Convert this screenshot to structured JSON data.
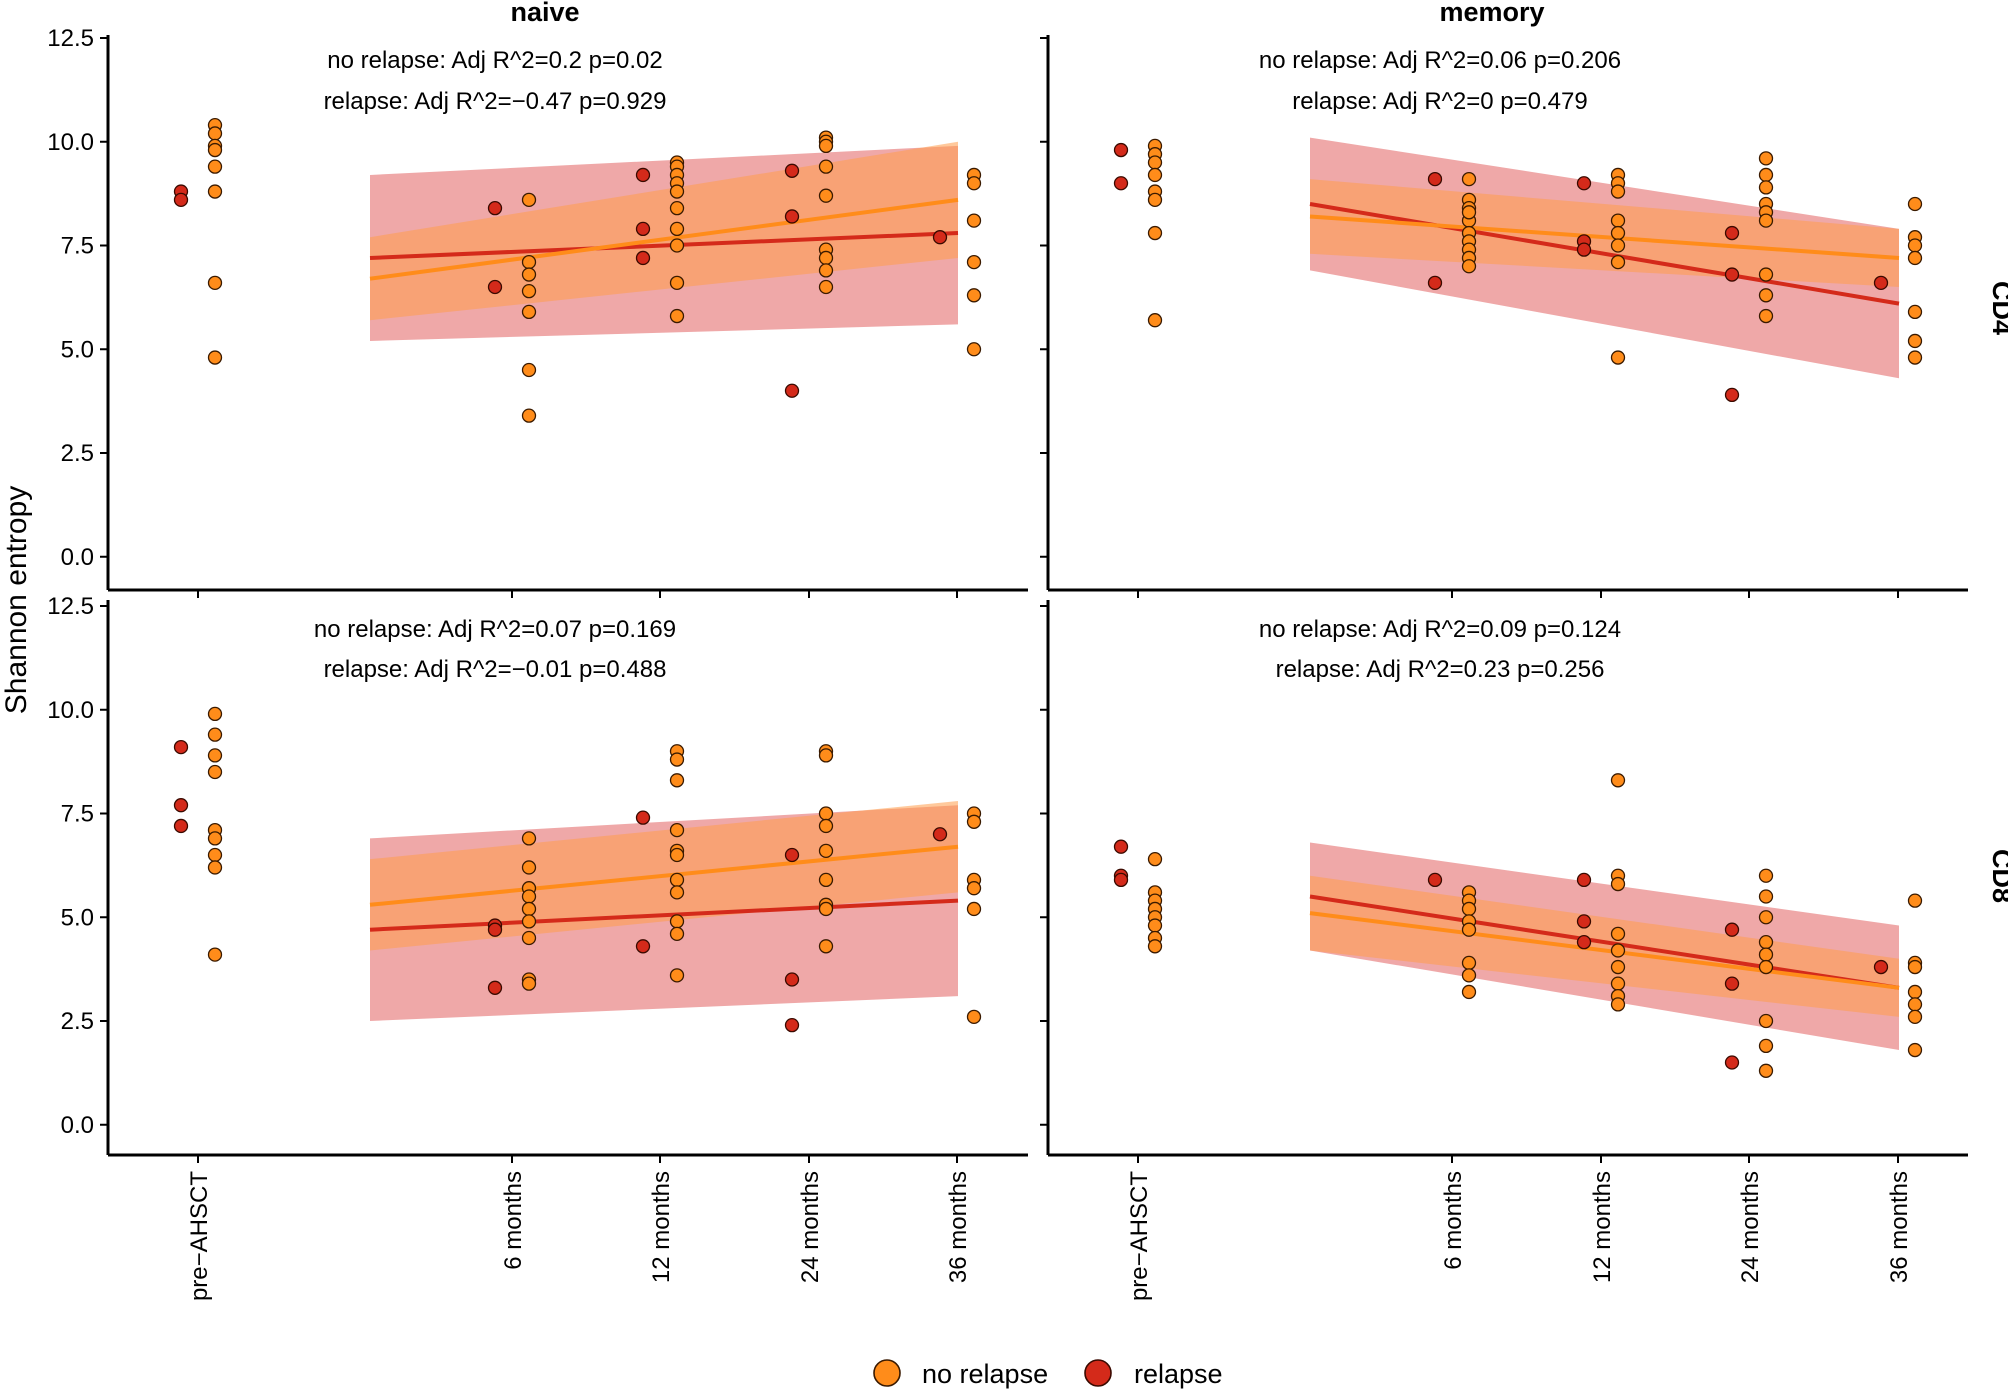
{
  "chart_data": {
    "type": "scatter",
    "ylabel": "Shannon entropy",
    "ylim": [
      0,
      12.5
    ],
    "yticks": [
      "0.0",
      "2.5",
      "5.0",
      "7.5",
      "10.0",
      "12.5"
    ],
    "xticks": [
      "pre−AHSCT",
      "6 months",
      "12 months",
      "24 months",
      "36 months"
    ],
    "x_positions": [
      -6,
      6,
      12,
      24,
      36
    ],
    "columns": [
      "naive",
      "memory"
    ],
    "rows": [
      "CD4",
      "CD8"
    ],
    "legend": {
      "items": [
        {
          "label": "no relapse",
          "color": "#FF8C1A"
        },
        {
          "label": "relapse",
          "color": "#D42A1A"
        }
      ]
    },
    "colors": {
      "no_relapse": "#FF8C1A",
      "relapse": "#D42A1A",
      "ribbon_no_relapse": "#FF9D4A",
      "ribbon_relapse": "#E26060"
    },
    "panels": [
      {
        "column": "naive",
        "row": "CD4",
        "annotations": [
          "no relapse: Adj R^2=0.2 p=0.02",
          "relapse: Adj R^2=−0.47 p=0.929"
        ],
        "no_relapse": [
          [
            -6,
            10.4
          ],
          [
            -6,
            10.2
          ],
          [
            -6,
            9.9
          ],
          [
            -6,
            9.8
          ],
          [
            -6,
            9.4
          ],
          [
            -6,
            8.8
          ],
          [
            -6,
            6.6
          ],
          [
            -6,
            4.8
          ],
          [
            6,
            8.6
          ],
          [
            6,
            7.1
          ],
          [
            6,
            6.8
          ],
          [
            6,
            6.4
          ],
          [
            6,
            5.9
          ],
          [
            6,
            4.5
          ],
          [
            6,
            3.4
          ],
          [
            12,
            9.5
          ],
          [
            12,
            9.4
          ],
          [
            12,
            9.2
          ],
          [
            12,
            9.0
          ],
          [
            12,
            8.8
          ],
          [
            12,
            8.4
          ],
          [
            12,
            7.9
          ],
          [
            12,
            7.5
          ],
          [
            12,
            6.6
          ],
          [
            12,
            5.8
          ],
          [
            24,
            10.1
          ],
          [
            24,
            10.0
          ],
          [
            24,
            9.9
          ],
          [
            24,
            9.4
          ],
          [
            24,
            8.7
          ],
          [
            24,
            7.4
          ],
          [
            24,
            7.2
          ],
          [
            24,
            6.9
          ],
          [
            24,
            6.5
          ],
          [
            36,
            9.2
          ],
          [
            36,
            9.0
          ],
          [
            36,
            8.1
          ],
          [
            36,
            7.1
          ],
          [
            36,
            6.3
          ],
          [
            36,
            5.0
          ]
        ],
        "relapse": [
          [
            -6,
            8.8
          ],
          [
            -6,
            8.6
          ],
          [
            6,
            8.4
          ],
          [
            6,
            6.5
          ],
          [
            12,
            9.2
          ],
          [
            12,
            7.9
          ],
          [
            12,
            7.2
          ],
          [
            24,
            9.3
          ],
          [
            24,
            8.2
          ],
          [
            24,
            4.0
          ],
          [
            36,
            7.7
          ]
        ],
        "fit_no_relapse": {
          "y0": 6.7,
          "y1": 8.6,
          "lo0": 5.7,
          "hi0": 7.7,
          "lo1": 7.2,
          "hi1": 10.0
        },
        "fit_relapse": {
          "y0": 7.2,
          "y1": 7.8,
          "lo0": 5.2,
          "hi0": 9.2,
          "lo1": 5.6,
          "hi1": 9.9
        }
      },
      {
        "column": "memory",
        "row": "CD4",
        "annotations": [
          "no relapse: Adj R^2=0.06 p=0.206",
          "relapse: Adj R^2=0 p=0.479"
        ],
        "no_relapse": [
          [
            -6,
            9.9
          ],
          [
            -6,
            9.7
          ],
          [
            -6,
            9.5
          ],
          [
            -6,
            9.2
          ],
          [
            -6,
            8.8
          ],
          [
            -6,
            8.6
          ],
          [
            -6,
            7.8
          ],
          [
            -6,
            5.7
          ],
          [
            6,
            9.1
          ],
          [
            6,
            8.6
          ],
          [
            6,
            8.4
          ],
          [
            6,
            8.1
          ],
          [
            6,
            7.8
          ],
          [
            6,
            7.6
          ],
          [
            6,
            7.4
          ],
          [
            6,
            7.2
          ],
          [
            6,
            7.0
          ],
          [
            6,
            8.3
          ],
          [
            12,
            9.2
          ],
          [
            12,
            9.0
          ],
          [
            12,
            8.8
          ],
          [
            12,
            8.1
          ],
          [
            12,
            7.8
          ],
          [
            12,
            7.5
          ],
          [
            12,
            7.1
          ],
          [
            12,
            4.8
          ],
          [
            24,
            9.6
          ],
          [
            24,
            9.2
          ],
          [
            24,
            8.9
          ],
          [
            24,
            8.5
          ],
          [
            24,
            8.3
          ],
          [
            24,
            8.1
          ],
          [
            24,
            6.8
          ],
          [
            24,
            6.3
          ],
          [
            24,
            5.8
          ],
          [
            36,
            8.5
          ],
          [
            36,
            7.7
          ],
          [
            36,
            7.5
          ],
          [
            36,
            7.2
          ],
          [
            36,
            5.9
          ],
          [
            36,
            5.2
          ],
          [
            36,
            4.8
          ]
        ],
        "relapse": [
          [
            -6,
            9.8
          ],
          [
            -6,
            9.0
          ],
          [
            6,
            9.1
          ],
          [
            6,
            6.6
          ],
          [
            12,
            9.0
          ],
          [
            12,
            7.6
          ],
          [
            12,
            7.4
          ],
          [
            24,
            7.8
          ],
          [
            24,
            6.8
          ],
          [
            24,
            3.9
          ],
          [
            36,
            6.6
          ]
        ],
        "fit_no_relapse": {
          "y0": 8.2,
          "y1": 7.2,
          "lo0": 7.3,
          "hi0": 9.1,
          "lo1": 6.5,
          "hi1": 7.9
        },
        "fit_relapse": {
          "y0": 8.5,
          "y1": 6.1,
          "lo0": 6.9,
          "hi0": 10.1,
          "lo1": 4.3,
          "hi1": 7.9
        }
      },
      {
        "column": "naive",
        "row": "CD8",
        "annotations": [
          "no relapse: Adj R^2=0.07 p=0.169",
          "relapse: Adj R^2=−0.01 p=0.488"
        ],
        "no_relapse": [
          [
            -6,
            9.9
          ],
          [
            -6,
            9.4
          ],
          [
            -6,
            8.9
          ],
          [
            -6,
            8.5
          ],
          [
            -6,
            7.1
          ],
          [
            -6,
            6.9
          ],
          [
            -6,
            6.5
          ],
          [
            -6,
            6.2
          ],
          [
            -6,
            4.1
          ],
          [
            6,
            6.9
          ],
          [
            6,
            6.2
          ],
          [
            6,
            5.7
          ],
          [
            6,
            5.5
          ],
          [
            6,
            5.2
          ],
          [
            6,
            4.9
          ],
          [
            6,
            4.5
          ],
          [
            6,
            3.5
          ],
          [
            6,
            3.4
          ],
          [
            12,
            9.0
          ],
          [
            12,
            8.8
          ],
          [
            12,
            8.3
          ],
          [
            12,
            7.1
          ],
          [
            12,
            6.6
          ],
          [
            12,
            6.5
          ],
          [
            12,
            5.9
          ],
          [
            12,
            5.6
          ],
          [
            12,
            4.9
          ],
          [
            12,
            4.6
          ],
          [
            12,
            3.6
          ],
          [
            24,
            9.0
          ],
          [
            24,
            8.9
          ],
          [
            24,
            7.5
          ],
          [
            24,
            7.2
          ],
          [
            24,
            6.6
          ],
          [
            24,
            5.9
          ],
          [
            24,
            5.3
          ],
          [
            24,
            5.2
          ],
          [
            24,
            4.3
          ],
          [
            36,
            7.5
          ],
          [
            36,
            7.3
          ],
          [
            36,
            5.9
          ],
          [
            36,
            5.7
          ],
          [
            36,
            5.2
          ],
          [
            36,
            2.6
          ]
        ],
        "relapse": [
          [
            -6,
            9.1
          ],
          [
            -6,
            7.7
          ],
          [
            -6,
            7.2
          ],
          [
            6,
            4.8
          ],
          [
            6,
            4.7
          ],
          [
            6,
            3.3
          ],
          [
            12,
            7.4
          ],
          [
            12,
            4.3
          ],
          [
            24,
            6.5
          ],
          [
            24,
            3.5
          ],
          [
            24,
            2.4
          ],
          [
            36,
            7.0
          ]
        ],
        "fit_no_relapse": {
          "y0": 5.3,
          "y1": 6.7,
          "lo0": 4.2,
          "hi0": 6.4,
          "lo1": 5.6,
          "hi1": 7.8
        },
        "fit_relapse": {
          "y0": 4.7,
          "y1": 5.4,
          "lo0": 2.5,
          "hi0": 6.9,
          "lo1": 3.1,
          "hi1": 7.7
        }
      },
      {
        "column": "memory",
        "row": "CD8",
        "annotations": [
          "no relapse: Adj R^2=0.09 p=0.124",
          "relapse: Adj R^2=0.23 p=0.256"
        ],
        "no_relapse": [
          [
            -6,
            6.4
          ],
          [
            -6,
            5.6
          ],
          [
            -6,
            5.4
          ],
          [
            -6,
            5.2
          ],
          [
            -6,
            5.0
          ],
          [
            -6,
            4.8
          ],
          [
            -6,
            4.5
          ],
          [
            -6,
            4.3
          ],
          [
            6,
            5.6
          ],
          [
            6,
            5.4
          ],
          [
            6,
            5.2
          ],
          [
            6,
            4.9
          ],
          [
            6,
            4.7
          ],
          [
            6,
            3.9
          ],
          [
            6,
            3.6
          ],
          [
            6,
            3.2
          ],
          [
            12,
            8.3
          ],
          [
            12,
            6.0
          ],
          [
            12,
            5.8
          ],
          [
            12,
            4.6
          ],
          [
            12,
            4.2
          ],
          [
            12,
            3.8
          ],
          [
            12,
            3.4
          ],
          [
            12,
            3.1
          ],
          [
            12,
            2.9
          ],
          [
            24,
            6.0
          ],
          [
            24,
            5.5
          ],
          [
            24,
            5.0
          ],
          [
            24,
            4.4
          ],
          [
            24,
            4.1
          ],
          [
            24,
            3.8
          ],
          [
            24,
            2.5
          ],
          [
            24,
            1.9
          ],
          [
            24,
            1.3
          ],
          [
            36,
            5.4
          ],
          [
            36,
            3.9
          ],
          [
            36,
            3.8
          ],
          [
            36,
            3.2
          ],
          [
            36,
            2.9
          ],
          [
            36,
            2.6
          ],
          [
            36,
            1.8
          ]
        ],
        "relapse": [
          [
            -6,
            6.7
          ],
          [
            -6,
            6.0
          ],
          [
            -6,
            5.9
          ],
          [
            6,
            5.9
          ],
          [
            12,
            5.9
          ],
          [
            12,
            4.9
          ],
          [
            12,
            4.4
          ],
          [
            24,
            4.7
          ],
          [
            24,
            3.4
          ],
          [
            24,
            1.5
          ],
          [
            36,
            3.8
          ]
        ],
        "fit_no_relapse": {
          "y0": 5.1,
          "y1": 3.3,
          "lo0": 4.2,
          "hi0": 6.0,
          "lo1": 2.6,
          "hi1": 4.0
        },
        "fit_relapse": {
          "y0": 5.5,
          "y1": 3.3,
          "lo0": 4.2,
          "hi0": 6.8,
          "lo1": 1.8,
          "hi1": 4.8
        }
      }
    ]
  }
}
